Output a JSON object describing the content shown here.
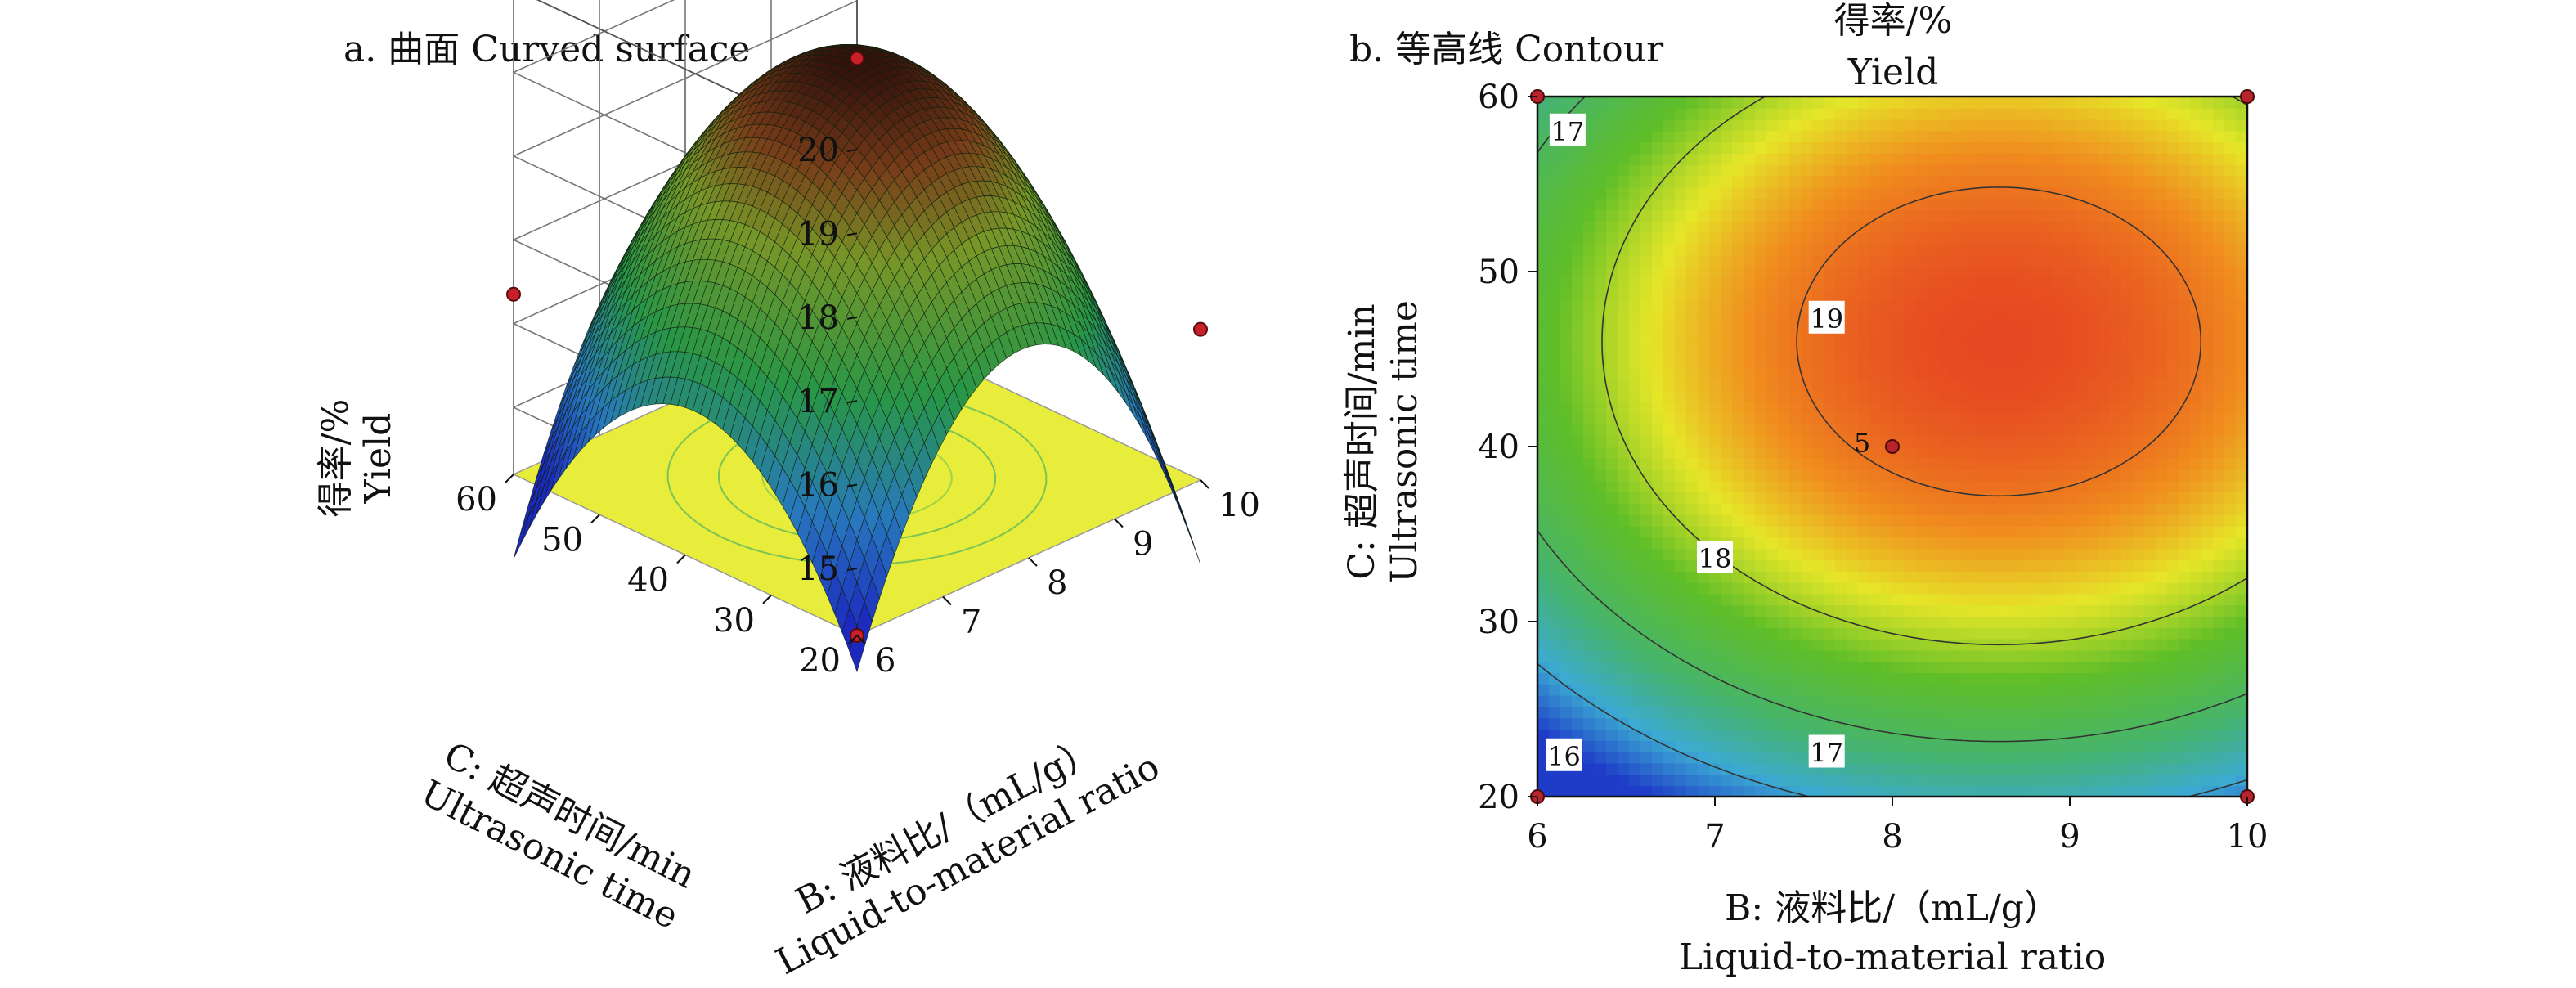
{
  "chart_data": [
    {
      "type": "surface",
      "title": "a. 曲面 Curved surface",
      "zlabel_cn": "得率/%",
      "zlabel_en": "Yield",
      "xlabel_cn": "B: 液料比/（mL/g）",
      "xlabel_en": "Liquid-to-material ratio",
      "ylabel_cn": "C: 超声时间/min",
      "ylabel_en": "Ultrasonic time",
      "x_ticks": [
        6,
        7,
        8,
        9,
        10
      ],
      "y_ticks": [
        20,
        30,
        40,
        50,
        60
      ],
      "z_ticks": [
        15,
        16,
        17,
        18,
        19,
        20
      ],
      "xlim": [
        6,
        10
      ],
      "ylim": [
        20,
        60
      ],
      "zlim": [
        14.2,
        20
      ],
      "grid": true,
      "design_points": [
        {
          "B": 6,
          "C": 60,
          "yield": 16.35
        },
        {
          "B": 10,
          "C": 20,
          "yield": 16.0
        },
        {
          "B": 8,
          "C": 40,
          "yield": 19.2
        },
        {
          "B": 6,
          "C": 20,
          "yield": 14.2
        }
      ],
      "colors": {
        "low": "#1c2fbf",
        "mid": "#2fa84a",
        "high": "#8b1a12",
        "floor": "#e8ec3a"
      }
    },
    {
      "type": "contour",
      "title": "b. 等高线 Contour",
      "zlabel_cn": "得率/%",
      "zlabel_en": "Yield",
      "xlabel_cn": "B: 液料比/（mL/g）",
      "xlabel_en": "Liquid-to-material ratio",
      "ylabel_cn": "C: 超声时间/min",
      "ylabel_en": "Ultrasonic time",
      "x_ticks": [
        6,
        7,
        8,
        9,
        10
      ],
      "y_ticks": [
        20,
        30,
        40,
        50,
        60
      ],
      "xlim": [
        6,
        10
      ],
      "ylim": [
        20,
        60
      ],
      "contour_levels": [
        16,
        17,
        18,
        19
      ],
      "contour_labels": [
        {
          "text": "17",
          "B": 6.17,
          "C": 58.0
        },
        {
          "text": "19",
          "B": 7.63,
          "C": 47.3
        },
        {
          "text": "18",
          "B": 7.0,
          "C": 33.6
        },
        {
          "text": "17",
          "B": 7.63,
          "C": 22.5
        },
        {
          "text": "16",
          "B": 6.15,
          "C": 22.3
        },
        {
          "text": "5",
          "B": 7.83,
          "C": 40.2
        }
      ],
      "points": [
        {
          "B": 6,
          "C": 60
        },
        {
          "B": 10,
          "C": 60
        },
        {
          "B": 8,
          "C": 40
        },
        {
          "B": 6,
          "C": 20
        },
        {
          "B": 10,
          "C": 20
        }
      ],
      "grid": false
    }
  ]
}
